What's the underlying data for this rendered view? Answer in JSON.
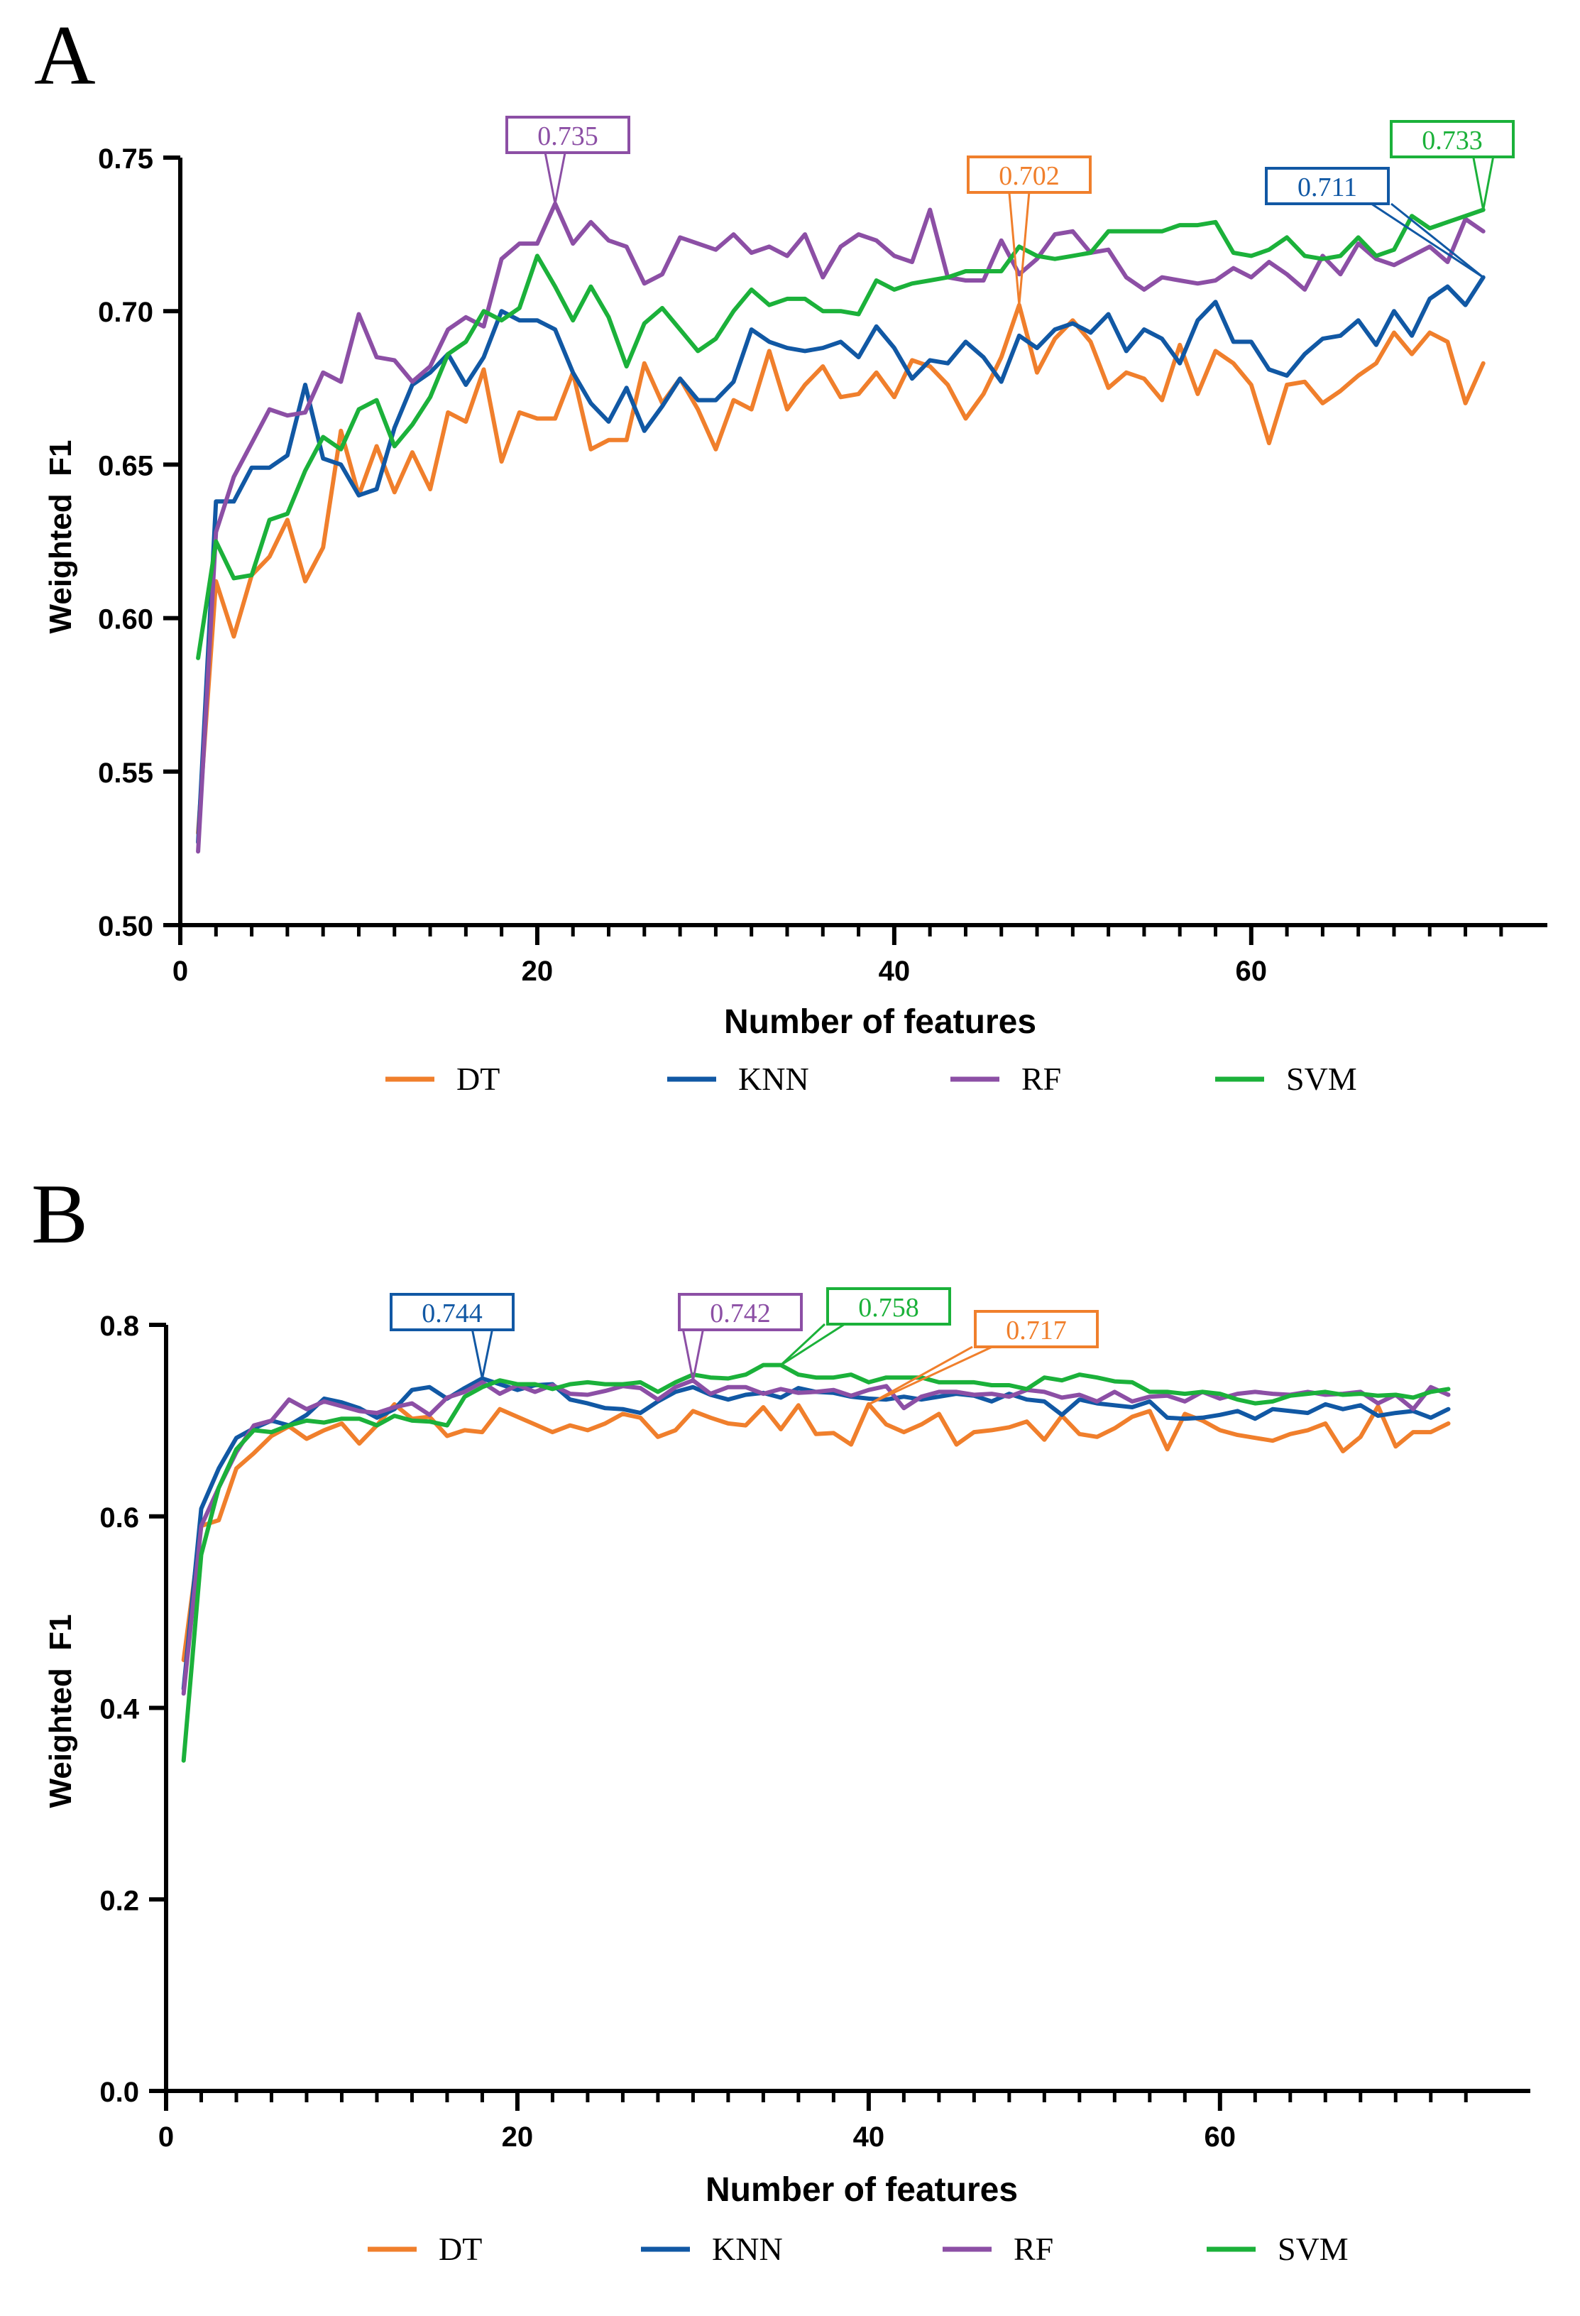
{
  "colors": {
    "DT": "#f07f2c",
    "KNN": "#1158a4",
    "RF": "#8c4fa5",
    "SVM": "#1bb13a",
    "axis": "#000000"
  },
  "chart_data": [
    {
      "panel_label": "A",
      "type": "line",
      "title": "",
      "xlabel": "Number of features",
      "ylabel": "Weighted  F1",
      "xlim": [
        0,
        75
      ],
      "ylim": [
        0.5,
        0.75
      ],
      "xticks": [
        0,
        20,
        40,
        60
      ],
      "xtick_labels": [
        "0",
        "20",
        "40",
        "60"
      ],
      "yticks": [
        0.5,
        0.55,
        0.6,
        0.65,
        0.7,
        0.75
      ],
      "ytick_labels": [
        "0.50",
        "0.55",
        "0.60",
        "0.65",
        "0.70",
        "0.75"
      ],
      "legend_position": "bottom",
      "series": [
        {
          "name": "DT",
          "values": [
            0.53,
            0.612,
            0.594,
            0.614,
            0.62,
            0.632,
            0.612,
            0.623,
            0.661,
            0.64,
            0.656,
            0.641,
            0.654,
            0.642,
            0.667,
            0.664,
            0.681,
            0.651,
            0.667,
            0.665,
            0.665,
            0.68,
            0.655,
            0.658,
            0.658,
            0.683,
            0.67,
            0.678,
            0.668,
            0.655,
            0.671,
            0.668,
            0.687,
            0.668,
            0.676,
            0.682,
            0.672,
            0.673,
            0.68,
            0.672,
            0.684,
            0.682,
            0.676,
            0.665,
            0.673,
            0.685,
            0.702,
            0.68,
            0.691,
            0.697,
            0.69,
            0.675,
            0.68,
            0.678,
            0.671,
            0.689,
            0.673,
            0.687,
            0.683,
            0.676,
            0.657,
            0.676,
            0.677,
            0.67,
            0.674,
            0.679,
            0.683,
            0.693,
            0.686,
            0.693,
            0.69,
            0.67,
            0.683
          ]
        },
        {
          "name": "KNN",
          "values": [
            0.527,
            0.638,
            0.638,
            0.649,
            0.649,
            0.653,
            0.676,
            0.652,
            0.65,
            0.64,
            0.642,
            0.662,
            0.676,
            0.68,
            0.686,
            0.676,
            0.685,
            0.7,
            0.697,
            0.697,
            0.694,
            0.68,
            0.67,
            0.664,
            0.675,
            0.661,
            0.669,
            0.678,
            0.671,
            0.671,
            0.677,
            0.694,
            0.69,
            0.688,
            0.687,
            0.688,
            0.69,
            0.685,
            0.695,
            0.688,
            0.678,
            0.684,
            0.683,
            0.69,
            0.685,
            0.677,
            0.692,
            0.688,
            0.694,
            0.696,
            0.693,
            0.699,
            0.687,
            0.694,
            0.691,
            0.683,
            0.697,
            0.703,
            0.69,
            0.69,
            0.681,
            0.679,
            0.686,
            0.691,
            0.692,
            0.697,
            0.689,
            0.7,
            0.692,
            0.704,
            0.708,
            0.702,
            0.711
          ]
        },
        {
          "name": "RF",
          "values": [
            0.524,
            0.628,
            0.646,
            0.657,
            0.668,
            0.666,
            0.667,
            0.68,
            0.677,
            0.699,
            0.685,
            0.684,
            0.677,
            0.682,
            0.694,
            0.698,
            0.695,
            0.717,
            0.722,
            0.722,
            0.735,
            0.722,
            0.729,
            0.723,
            0.721,
            0.709,
            0.712,
            0.724,
            0.722,
            0.72,
            0.725,
            0.719,
            0.721,
            0.718,
            0.725,
            0.711,
            0.721,
            0.725,
            0.723,
            0.718,
            0.716,
            0.733,
            0.711,
            0.71,
            0.71,
            0.723,
            0.712,
            0.717,
            0.725,
            0.726,
            0.719,
            0.72,
            0.711,
            0.707,
            0.711,
            0.71,
            0.709,
            0.71,
            0.714,
            0.711,
            0.716,
            0.712,
            0.707,
            0.718,
            0.712,
            0.722,
            0.717,
            0.715,
            0.718,
            0.721,
            0.716,
            0.73,
            0.726
          ]
        },
        {
          "name": "SVM",
          "values": [
            0.587,
            0.625,
            0.613,
            0.614,
            0.632,
            0.634,
            0.648,
            0.659,
            0.655,
            0.668,
            0.671,
            0.656,
            0.663,
            0.672,
            0.686,
            0.69,
            0.7,
            0.697,
            0.701,
            0.718,
            0.708,
            0.697,
            0.708,
            0.698,
            0.682,
            0.696,
            0.701,
            0.694,
            0.687,
            0.691,
            0.7,
            0.707,
            0.702,
            0.704,
            0.704,
            0.7,
            0.7,
            0.699,
            0.71,
            0.707,
            0.709,
            0.71,
            0.711,
            0.713,
            0.713,
            0.713,
            0.721,
            0.718,
            0.717,
            0.718,
            0.719,
            0.726,
            0.726,
            0.726,
            0.726,
            0.728,
            0.728,
            0.729,
            0.719,
            0.718,
            0.72,
            0.724,
            0.718,
            0.717,
            0.718,
            0.724,
            0.718,
            0.72,
            0.731,
            0.727,
            0.729,
            0.731,
            0.733
          ]
        }
      ],
      "annotations": [
        {
          "series": "RF",
          "text": "0.735",
          "x": 21,
          "y": 0.735
        },
        {
          "series": "DT",
          "text": "0.702",
          "x": 47,
          "y": 0.702
        },
        {
          "series": "KNN",
          "text": "0.711",
          "x": 73,
          "y": 0.711
        },
        {
          "series": "SVM",
          "text": "0.733",
          "x": 73,
          "y": 0.733
        }
      ]
    },
    {
      "panel_label": "B",
      "type": "line",
      "title": "",
      "xlabel": "Number of features",
      "ylabel": "Weighted  F1",
      "xlim": [
        0,
        75
      ],
      "ylim": [
        0.0,
        0.8
      ],
      "xticks": [
        0,
        20,
        40,
        60
      ],
      "xtick_labels": [
        "0",
        "20",
        "40",
        "60"
      ],
      "yticks": [
        0.0,
        0.2,
        0.4,
        0.6,
        0.8
      ],
      "ytick_labels": [
        "0.0",
        "0.2",
        "0.4",
        "0.6",
        "0.8"
      ],
      "legend_position": "bottom",
      "series": [
        {
          "name": "DT",
          "values": [
            0.45,
            0.59,
            0.596,
            0.65,
            0.666,
            0.684,
            0.694,
            0.681,
            0.69,
            0.697,
            0.676,
            0.695,
            0.717,
            0.702,
            0.704,
            0.684,
            0.69,
            0.688,
            0.712,
            0.704,
            0.696,
            0.688,
            0.695,
            0.69,
            0.697,
            0.707,
            0.703,
            0.683,
            0.69,
            0.71,
            0.703,
            0.697,
            0.695,
            0.714,
            0.691,
            0.716,
            0.686,
            0.687,
            0.675,
            0.717,
            0.696,
            0.688,
            0.696,
            0.707,
            0.675,
            0.688,
            0.69,
            0.693,
            0.699,
            0.68,
            0.705,
            0.686,
            0.683,
            0.692,
            0.704,
            0.71,
            0.67,
            0.707,
            0.7,
            0.69,
            0.685,
            0.682,
            0.679,
            0.686,
            0.69,
            0.697,
            0.668,
            0.683,
            0.715,
            0.673,
            0.688,
            0.688,
            0.697
          ]
        },
        {
          "name": "KNN",
          "values": [
            0.42,
            0.608,
            0.65,
            0.682,
            0.692,
            0.7,
            0.695,
            0.706,
            0.723,
            0.719,
            0.713,
            0.703,
            0.712,
            0.732,
            0.735,
            0.723,
            0.734,
            0.744,
            0.738,
            0.732,
            0.737,
            0.738,
            0.722,
            0.718,
            0.713,
            0.712,
            0.708,
            0.72,
            0.73,
            0.735,
            0.727,
            0.722,
            0.727,
            0.729,
            0.724,
            0.734,
            0.73,
            0.729,
            0.725,
            0.723,
            0.722,
            0.725,
            0.722,
            0.725,
            0.728,
            0.726,
            0.72,
            0.728,
            0.722,
            0.72,
            0.706,
            0.722,
            0.718,
            0.716,
            0.714,
            0.72,
            0.703,
            0.702,
            0.703,
            0.706,
            0.71,
            0.702,
            0.712,
            0.71,
            0.708,
            0.717,
            0.712,
            0.716,
            0.705,
            0.708,
            0.71,
            0.703,
            0.712
          ]
        },
        {
          "name": "RF",
          "values": [
            0.415,
            0.59,
            0.63,
            0.667,
            0.695,
            0.7,
            0.722,
            0.712,
            0.72,
            0.715,
            0.71,
            0.708,
            0.714,
            0.718,
            0.706,
            0.724,
            0.73,
            0.74,
            0.728,
            0.737,
            0.73,
            0.737,
            0.728,
            0.727,
            0.731,
            0.736,
            0.734,
            0.722,
            0.735,
            0.742,
            0.728,
            0.735,
            0.735,
            0.728,
            0.733,
            0.729,
            0.73,
            0.732,
            0.726,
            0.732,
            0.736,
            0.713,
            0.725,
            0.73,
            0.73,
            0.727,
            0.728,
            0.725,
            0.732,
            0.73,
            0.724,
            0.727,
            0.72,
            0.73,
            0.72,
            0.725,
            0.726,
            0.72,
            0.73,
            0.723,
            0.728,
            0.73,
            0.728,
            0.727,
            0.73,
            0.727,
            0.728,
            0.73,
            0.718,
            0.727,
            0.712,
            0.735,
            0.727
          ]
        },
        {
          "name": "SVM",
          "values": [
            0.345,
            0.56,
            0.63,
            0.67,
            0.69,
            0.688,
            0.695,
            0.7,
            0.698,
            0.702,
            0.702,
            0.695,
            0.705,
            0.7,
            0.699,
            0.695,
            0.725,
            0.735,
            0.742,
            0.738,
            0.738,
            0.733,
            0.738,
            0.74,
            0.738,
            0.738,
            0.74,
            0.73,
            0.74,
            0.748,
            0.745,
            0.744,
            0.748,
            0.758,
            0.758,
            0.748,
            0.745,
            0.745,
            0.748,
            0.74,
            0.745,
            0.745,
            0.745,
            0.74,
            0.74,
            0.74,
            0.737,
            0.737,
            0.733,
            0.745,
            0.742,
            0.748,
            0.745,
            0.741,
            0.74,
            0.73,
            0.73,
            0.728,
            0.73,
            0.728,
            0.722,
            0.718,
            0.72,
            0.726,
            0.728,
            0.73,
            0.727,
            0.728,
            0.726,
            0.727,
            0.724,
            0.73,
            0.733
          ]
        }
      ],
      "annotations": [
        {
          "series": "KNN",
          "text": "0.744",
          "x": 18,
          "y": 0.744
        },
        {
          "series": "RF",
          "text": "0.742",
          "x": 30,
          "y": 0.742
        },
        {
          "series": "SVM",
          "text": "0.758",
          "x": 35,
          "y": 0.758
        },
        {
          "series": "DT",
          "text": "0.717",
          "x": 40,
          "y": 0.717
        }
      ]
    }
  ]
}
